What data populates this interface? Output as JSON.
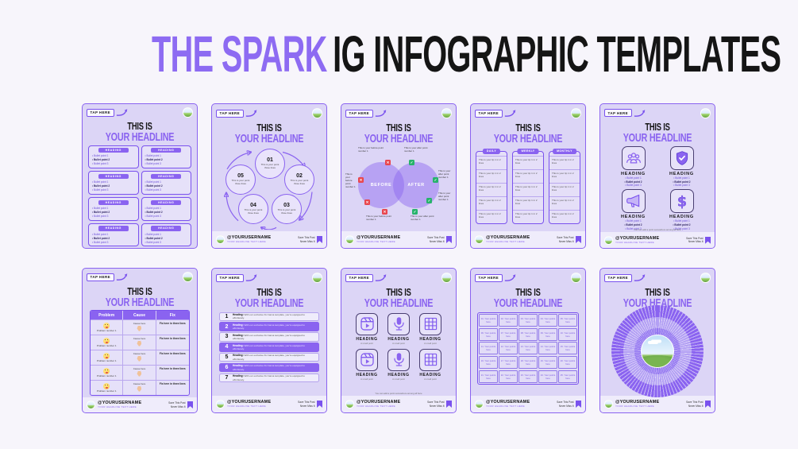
{
  "page": {
    "title_accent": "THE SPARK",
    "title_rest": "IG INFOGRAPHIC TEMPLATES"
  },
  "common": {
    "tap_here": "TAP HERE",
    "title_top": "THIS IS",
    "title_main": "YOUR HEADLINE",
    "username": "@YOURUSERNAME",
    "username_sub": "YOUR HEADLINE TEXT HERE",
    "save_line1": "Save This Post",
    "save_line2": "Never Miss It"
  },
  "colors": {
    "accent": "#8a63f0",
    "card_bg": "#dcd5f6",
    "page_bg": "#f7f5fb",
    "red": "#e8464e",
    "green": "#27b36b",
    "title_black": "#151515"
  },
  "cards": [
    {
      "id": "headings-grid",
      "type": "headings_grid",
      "boxes": [
        {
          "heading": "HEADING",
          "bullets": [
            "Bullet point 1",
            "Bullet point 2",
            "Bullet point 3"
          ]
        },
        {
          "heading": "HEADING",
          "bullets": [
            "Bullet point 1",
            "Bullet point 2",
            "Bullet point 3"
          ]
        },
        {
          "heading": "HEADING",
          "bullets": [
            "Bullet point 1",
            "Bullet point 2",
            "Bullet point 3"
          ]
        },
        {
          "heading": "HEADING",
          "bullets": [
            "Bullet point 1",
            "Bullet point 2",
            "Bullet point 3"
          ]
        },
        {
          "heading": "HEADING",
          "bullets": [
            "Bullet point 1",
            "Bullet point 2",
            "Bullet point 3"
          ]
        },
        {
          "heading": "HEADING",
          "bullets": [
            "Bullet point 1",
            "Bullet point 2",
            "Bullet point 3"
          ]
        },
        {
          "heading": "HEADING",
          "bullets": [
            "Bullet point 1",
            "Bullet point 2",
            "Bullet point 3"
          ]
        },
        {
          "heading": "HEADING",
          "bullets": [
            "Bullet point 1",
            "Bullet point 2",
            "Bullet point 3"
          ]
        }
      ]
    },
    {
      "id": "cycle",
      "type": "cycle",
      "steps": [
        {
          "num": "01",
          "text": "This is your point three lines"
        },
        {
          "num": "02",
          "text": "This is your point three lines"
        },
        {
          "num": "03",
          "text": "This is your point three lines"
        },
        {
          "num": "04",
          "text": "This is your point three lines"
        },
        {
          "num": "05",
          "text": "This is your point three lines"
        }
      ]
    },
    {
      "id": "venn",
      "type": "venn",
      "left_label": "BEFORE",
      "right_label": "AFTER",
      "labels": [
        {
          "side": "before",
          "text": "This is your before point number 1"
        },
        {
          "side": "after",
          "text": "This is your after point number 1"
        },
        {
          "side": "before",
          "text": "This is your before point number 1"
        },
        {
          "side": "before",
          "text": "This is your before point number 1"
        },
        {
          "side": "after",
          "text": "This is your after point number 1"
        },
        {
          "side": "after",
          "text": "This is your after point number 1"
        },
        {
          "side": "after",
          "text": "This is your after point number 1"
        }
      ]
    },
    {
      "id": "tips-columns",
      "type": "columns",
      "columns": [
        {
          "header": "DAILY",
          "cells": [
            "This is your tip 1 in 2 lines",
            "This is your tip 1 in 2 lines",
            "This is your tip 1 in 2 lines",
            "This is your tip 1 in 2 lines",
            "This is your tip 1 in 2 lines"
          ]
        },
        {
          "header": "WEEKLY",
          "cells": [
            "This is your tip 1 in 2 lines",
            "This is your tip 1 in 2 lines",
            "This is your tip 1 in 2 lines",
            "This is your tip 1 in 2 lines",
            "This is your tip 1 in 2 lines"
          ]
        },
        {
          "header": "MONTHLY",
          "cells": [
            "This is your tip 1 in 2 lines",
            "This is your tip 1 in 2 lines",
            "This is your tip 1 in 2 lines",
            "This is your tip 1 in 2 lines",
            "This is your tip 1 in 2 lines"
          ]
        }
      ]
    },
    {
      "id": "icon-quad",
      "type": "icon_quad",
      "caption": "You can add a point somewhere among all here",
      "items": [
        {
          "icon": "group-icon",
          "heading": "HEADING",
          "bullets": [
            "Bullet point 1",
            "Bullet point 2",
            "Bullet point 3"
          ]
        },
        {
          "icon": "shield-check-icon",
          "heading": "HEADING",
          "bullets": [
            "Bullet point 1",
            "Bullet point 2",
            "Bullet point 3"
          ]
        },
        {
          "icon": "megaphone-icon",
          "heading": "HEADING",
          "bullets": [
            "Bullet point 1",
            "Bullet point 2",
            "Bullet point 3"
          ]
        },
        {
          "icon": "dollar-icon",
          "heading": "HEADING",
          "bullets": [
            "Bullet point 1",
            "Bullet point 2",
            "Bullet point 3"
          ]
        }
      ]
    },
    {
      "id": "problem-cause-fix",
      "type": "pcf_table",
      "headers": [
        "Problem",
        "Cause",
        "Fix"
      ],
      "rows": [
        {
          "problem": "Problem number 1",
          "cause": "Cause here",
          "fix": "Fix here in three lines"
        },
        {
          "problem": "Problem number 1",
          "cause": "Cause here",
          "fix": "Fix here in three lines"
        },
        {
          "problem": "Problem number 1",
          "cause": "Cause here",
          "fix": "Fix here in three lines"
        },
        {
          "problem": "Problem number 1",
          "cause": "Cause here",
          "fix": "Fix here in three lines"
        },
        {
          "problem": "Problem number 1",
          "cause": "Cause here",
          "fix": "Fix here in three lines"
        }
      ]
    },
    {
      "id": "numbered-list",
      "type": "numbered_list",
      "rows": [
        {
          "num": "1",
          "heading": "Heading:",
          "text": "With our exclusive IG Canva template, you're equipped to effortlessly."
        },
        {
          "num": "2",
          "heading": "Heading:",
          "text": "With our exclusive IG Canva template, you're equipped to effortlessly."
        },
        {
          "num": "3",
          "heading": "Heading:",
          "text": "With our exclusive IG Canva template, you're equipped to effortlessly."
        },
        {
          "num": "4",
          "heading": "Heading:",
          "text": "With our exclusive IG Canva template, you're equipped to effortlessly."
        },
        {
          "num": "5",
          "heading": "Heading:",
          "text": "With our exclusive IG Canva template, you're equipped to effortlessly."
        },
        {
          "num": "6",
          "heading": "Heading:",
          "text": "With our exclusive IG Canva template, you're equipped to effortlessly."
        },
        {
          "num": "7",
          "heading": "Heading:",
          "text": "With our exclusive IG Canva template, you're equipped to effortlessly."
        }
      ]
    },
    {
      "id": "icon-six",
      "type": "icon_six",
      "caption": "You can add a point somewhere among all here",
      "items": [
        {
          "icon": "reels-icon",
          "heading": "HEADING",
          "sub": "A small point"
        },
        {
          "icon": "mic-icon",
          "heading": "HEADING",
          "sub": "A small point"
        },
        {
          "icon": "grid-icon",
          "heading": "HEADING",
          "sub": "A small point"
        },
        {
          "icon": "reels-icon",
          "heading": "HEADING",
          "sub": "A small point"
        },
        {
          "icon": "mic-icon",
          "heading": "HEADING",
          "sub": "A small point"
        },
        {
          "icon": "grid-icon",
          "heading": "HEADING",
          "sub": "A small point"
        }
      ]
    },
    {
      "id": "points-grid",
      "type": "points_grid",
      "cells": [
        "01. Your points here",
        "02. Your points here",
        "03. Your points here",
        "04. Your points here",
        "05. Your points here",
        "06. Your points here",
        "07. Your points here",
        "08. Your points here",
        "09. Your points here",
        "10. Your points here",
        "11. Your points here",
        "12. Your points here",
        "13. Your points here",
        "14. Your points here",
        "15. Your points here",
        "16. Your points here",
        "17. Your points here",
        "18. Your points here",
        "19. Your points here",
        "20. Your points here",
        "21. Your points here",
        "22. Your points here",
        "23. Your points here",
        "24. Your points here",
        "25. Your points here"
      ]
    },
    {
      "id": "radial",
      "type": "radial",
      "center_image": "landscape-photo"
    }
  ]
}
